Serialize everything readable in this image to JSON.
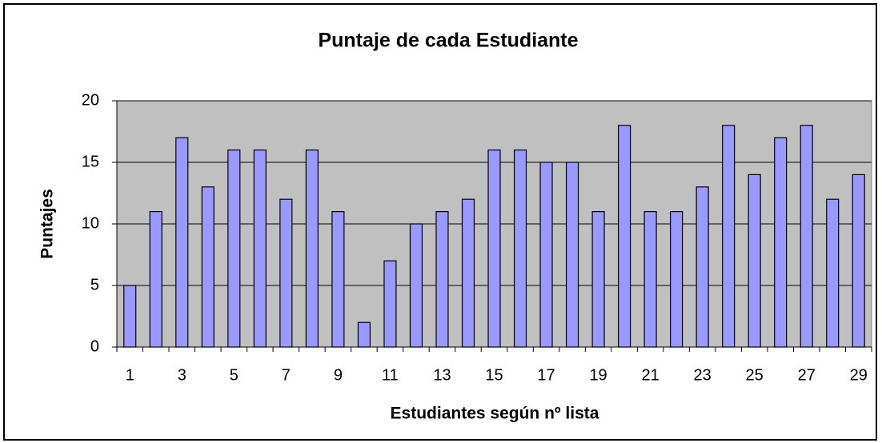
{
  "chart_data": {
    "type": "bar",
    "title": "Puntaje de cada Estudiante",
    "x_label": "Estudiantes según nº lista",
    "y_label": "Puntajes",
    "categories": [
      1,
      null,
      3,
      null,
      5,
      null,
      7,
      null,
      9,
      null,
      11,
      null,
      13,
      null,
      15,
      null,
      17,
      null,
      19,
      null,
      21,
      null,
      23,
      null,
      25,
      null,
      27,
      null,
      29
    ],
    "values": [
      5,
      11,
      17,
      13,
      16,
      16,
      12,
      16,
      11,
      2,
      7,
      10,
      11,
      12,
      16,
      16,
      15,
      15,
      11,
      18,
      11,
      11,
      13,
      18,
      14,
      17,
      18,
      12,
      14
    ],
    "color": "#9999ff",
    "ylim": [
      0,
      20
    ],
    "yticks": [
      0,
      5,
      10,
      15,
      20
    ],
    "grid": true
  }
}
